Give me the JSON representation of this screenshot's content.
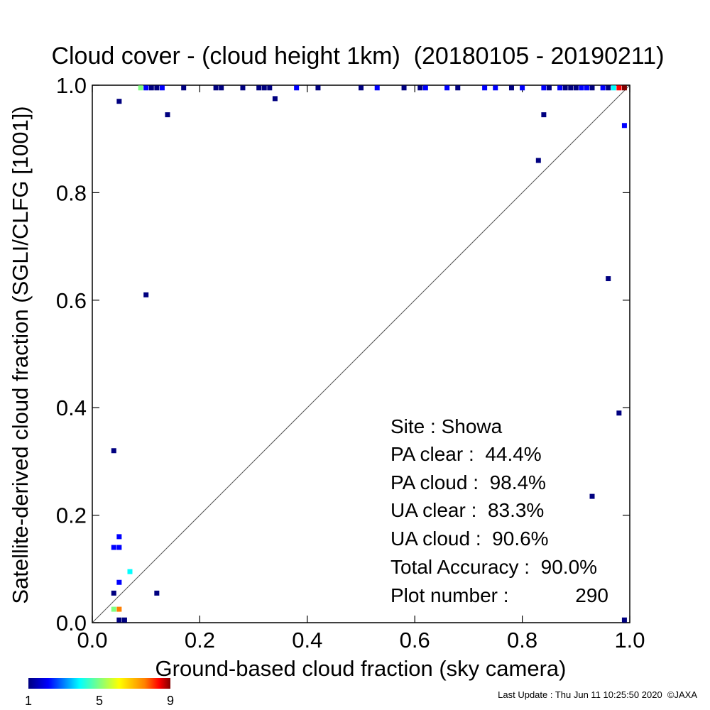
{
  "chart_data": {
    "type": "heatmap",
    "title": "Cloud cover - (cloud height 1km)  (20180105 - 20190211)",
    "xlabel": "Ground-based cloud fraction (sky camera)",
    "ylabel": "Satellite-derived cloud fraction (SGLI/CLFG [1001])",
    "xlim": [
      0.0,
      1.0
    ],
    "ylim": [
      0.0,
      1.0
    ],
    "x_ticks": [
      "0.0",
      "0.2",
      "0.4",
      "0.6",
      "0.8",
      "1.0"
    ],
    "y_ticks": [
      "0.0",
      "0.2",
      "0.4",
      "0.6",
      "0.8",
      "1.0"
    ],
    "diagonal_line": true,
    "grid": false,
    "colorbar": {
      "min": 1,
      "max": 9,
      "tick_labels": [
        "1",
        "5",
        "9"
      ],
      "colors": [
        "#000080",
        "#0000ff",
        "#00ffff",
        "#80ff80",
        "#ffff00",
        "#ff8000",
        "#ff0000",
        "#800000"
      ]
    },
    "points": [
      {
        "x": 0.05,
        "y": 0.97,
        "count": 1
      },
      {
        "x": 0.14,
        "y": 0.945,
        "count": 1
      },
      {
        "x": 0.34,
        "y": 0.975,
        "count": 1
      },
      {
        "x": 0.1,
        "y": 0.61,
        "count": 1
      },
      {
        "x": 0.04,
        "y": 0.32,
        "count": 1
      },
      {
        "x": 0.05,
        "y": 0.16,
        "count": 2
      },
      {
        "x": 0.04,
        "y": 0.14,
        "count": 2
      },
      {
        "x": 0.05,
        "y": 0.14,
        "count": 2
      },
      {
        "x": 0.07,
        "y": 0.095,
        "count": 3
      },
      {
        "x": 0.05,
        "y": 0.075,
        "count": 2
      },
      {
        "x": 0.04,
        "y": 0.055,
        "count": 1
      },
      {
        "x": 0.12,
        "y": 0.055,
        "count": 1
      },
      {
        "x": 0.04,
        "y": 0.025,
        "count": 4
      },
      {
        "x": 0.05,
        "y": 0.025,
        "count": 6
      },
      {
        "x": 0.05,
        "y": 0.005,
        "count": 1
      },
      {
        "x": 0.06,
        "y": 0.005,
        "count": 1
      },
      {
        "x": 0.83,
        "y": 0.86,
        "count": 1
      },
      {
        "x": 0.84,
        "y": 0.945,
        "count": 1
      },
      {
        "x": 0.96,
        "y": 0.64,
        "count": 1
      },
      {
        "x": 0.98,
        "y": 0.39,
        "count": 1
      },
      {
        "x": 0.93,
        "y": 0.235,
        "count": 1
      },
      {
        "x": 0.99,
        "y": 0.925,
        "count": 2
      },
      {
        "x": 0.99,
        "y": 0.005,
        "count": 1
      },
      {
        "x": 0.09,
        "y": 0.995,
        "count": 4
      },
      {
        "x": 0.1,
        "y": 0.995,
        "count": 2
      },
      {
        "x": 0.11,
        "y": 0.995,
        "count": 1
      },
      {
        "x": 0.12,
        "y": 0.995,
        "count": 1
      },
      {
        "x": 0.13,
        "y": 0.995,
        "count": 2
      },
      {
        "x": 0.17,
        "y": 0.995,
        "count": 1
      },
      {
        "x": 0.23,
        "y": 0.995,
        "count": 1
      },
      {
        "x": 0.24,
        "y": 0.995,
        "count": 1
      },
      {
        "x": 0.28,
        "y": 0.995,
        "count": 1
      },
      {
        "x": 0.31,
        "y": 0.995,
        "count": 1
      },
      {
        "x": 0.32,
        "y": 0.995,
        "count": 1
      },
      {
        "x": 0.33,
        "y": 0.995,
        "count": 1
      },
      {
        "x": 0.38,
        "y": 0.995,
        "count": 2
      },
      {
        "x": 0.42,
        "y": 0.995,
        "count": 1
      },
      {
        "x": 0.5,
        "y": 0.995,
        "count": 1
      },
      {
        "x": 0.53,
        "y": 0.995,
        "count": 2
      },
      {
        "x": 0.58,
        "y": 0.995,
        "count": 1
      },
      {
        "x": 0.61,
        "y": 0.995,
        "count": 1
      },
      {
        "x": 0.62,
        "y": 0.995,
        "count": 2
      },
      {
        "x": 0.66,
        "y": 0.995,
        "count": 2
      },
      {
        "x": 0.68,
        "y": 0.995,
        "count": 1
      },
      {
        "x": 0.73,
        "y": 0.995,
        "count": 2
      },
      {
        "x": 0.75,
        "y": 0.995,
        "count": 2
      },
      {
        "x": 0.78,
        "y": 0.995,
        "count": 1
      },
      {
        "x": 0.8,
        "y": 0.995,
        "count": 2
      },
      {
        "x": 0.84,
        "y": 0.995,
        "count": 2
      },
      {
        "x": 0.85,
        "y": 0.995,
        "count": 1
      },
      {
        "x": 0.87,
        "y": 0.995,
        "count": 2
      },
      {
        "x": 0.88,
        "y": 0.995,
        "count": 1
      },
      {
        "x": 0.89,
        "y": 0.995,
        "count": 1
      },
      {
        "x": 0.9,
        "y": 0.995,
        "count": 1
      },
      {
        "x": 0.91,
        "y": 0.995,
        "count": 2
      },
      {
        "x": 0.92,
        "y": 0.995,
        "count": 2
      },
      {
        "x": 0.93,
        "y": 0.995,
        "count": 1
      },
      {
        "x": 0.95,
        "y": 0.995,
        "count": 2
      },
      {
        "x": 0.96,
        "y": 0.995,
        "count": 1
      },
      {
        "x": 0.97,
        "y": 0.995,
        "count": 3
      },
      {
        "x": 0.98,
        "y": 0.995,
        "count": 7
      },
      {
        "x": 0.99,
        "y": 0.995,
        "count": 9
      }
    ]
  },
  "stats": {
    "site": "Site : Showa",
    "pa_clear": "PA clear :  44.4%",
    "pa_cloud": "PA cloud :  98.4%",
    "ua_clear": "UA clear :  83.3%",
    "ua_cloud": "UA cloud :  90.6%",
    "total_accuracy": "Total Accuracy :  90.0%",
    "plot_number_label": "Plot number :",
    "plot_number_value": "290"
  },
  "footer": {
    "last_update": "Last Update : Thu Jun 11 10:25:50 2020  ©JAXA"
  }
}
